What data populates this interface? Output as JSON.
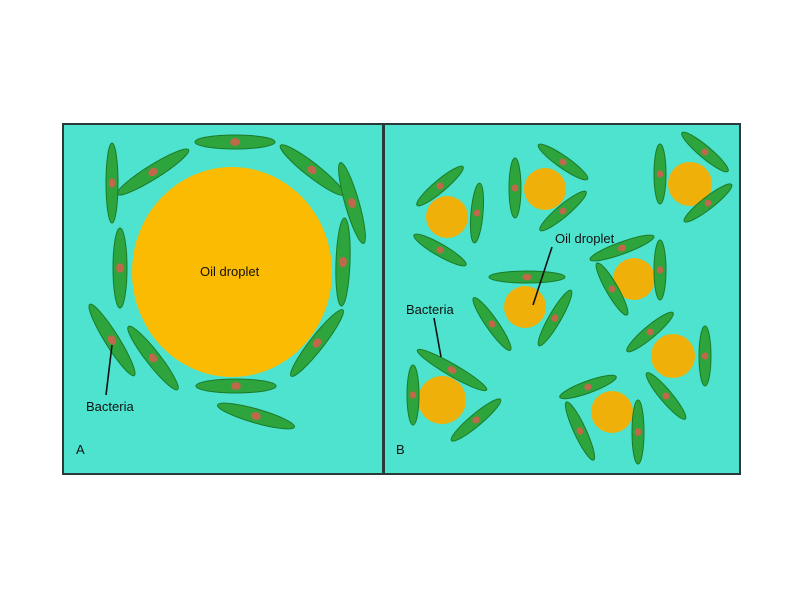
{
  "colors": {
    "background": "#4de3cf",
    "border": "#2a3a3a",
    "droplet": "#fbbb00",
    "small_droplet": "#f0b00a",
    "bacteria": "#2ea43c",
    "bacteria_outline": "#1b7a2a",
    "nucleus": "#c0684a"
  },
  "panel_a": {
    "letter": "A",
    "droplet_label": "Oil droplet",
    "bacteria_label": "Bacteria"
  },
  "panel_b": {
    "letter": "B",
    "droplet_label": "Oil droplet",
    "bacteria_label": "Bacteria"
  }
}
